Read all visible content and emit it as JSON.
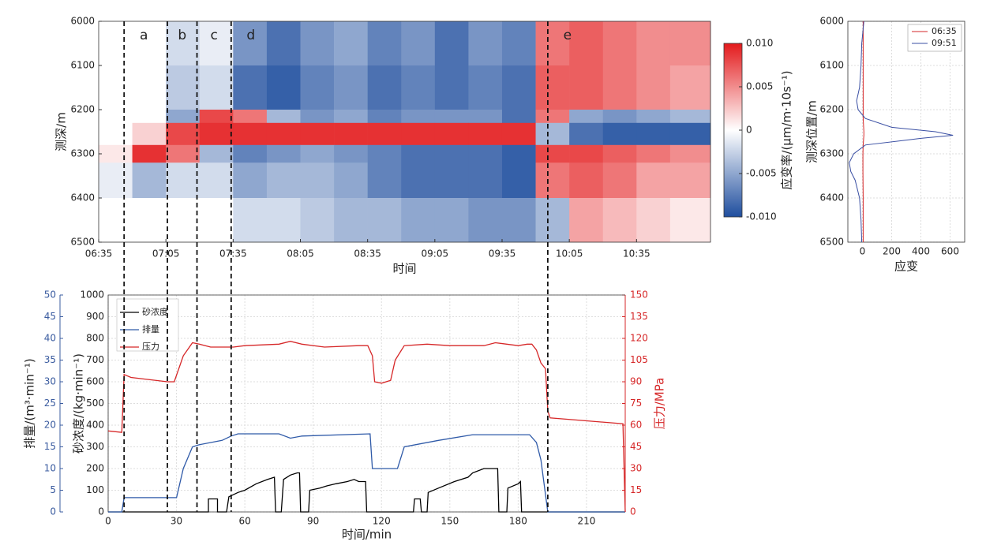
{
  "chart_data": [
    {
      "type": "heatmap",
      "xlabel": "时间",
      "ylabel": "测深/m",
      "zlabel": "应变率/(μm/m·10s⁻¹)",
      "xlim": [
        "06:35",
        "11:08"
      ],
      "xticks": [
        "06:35",
        "07:05",
        "07:35",
        "08:05",
        "08:35",
        "09:05",
        "09:35",
        "10:05",
        "10:35"
      ],
      "ylim": [
        6000,
        6500
      ],
      "yticks": [
        6000,
        6100,
        6200,
        6300,
        6400,
        6500
      ],
      "y_reversed": true,
      "zlim": [
        -0.01,
        0.01
      ],
      "zticks": [
        {
          "value": 0.01,
          "label": "0.010"
        },
        0.005,
        0,
        -0.005,
        {
          "value": -0.01,
          "label": "-0.010"
        }
      ],
      "colors": [
        "#1f4e9e",
        "#ffffff",
        "#e31a1c"
      ],
      "x_edges": [
        "06:35",
        "06:50",
        "07:05",
        "07:20",
        "07:35",
        "07:50",
        "08:05",
        "08:20",
        "08:35",
        "08:50",
        "09:05",
        "09:20",
        "09:35",
        "09:50",
        "10:05",
        "10:20",
        "10:35",
        "10:50",
        "11:08"
      ],
      "y_edges": [
        6000,
        6100,
        6200,
        6230,
        6280,
        6320,
        6400,
        6500
      ],
      "z": [
        [
          0,
          0,
          -0.002,
          -0.001,
          -0.006,
          -0.008,
          -0.006,
          -0.005,
          -0.007,
          -0.006,
          -0.008,
          -0.006,
          -0.007,
          0.006,
          0.007,
          0.006,
          0.005,
          0.005
        ],
        [
          0,
          0,
          -0.003,
          -0.002,
          -0.008,
          -0.009,
          -0.007,
          -0.006,
          -0.008,
          -0.007,
          -0.008,
          -0.007,
          -0.008,
          0.007,
          0.007,
          0.006,
          0.005,
          0.004
        ],
        [
          0,
          0,
          -0.005,
          0.008,
          0.006,
          -0.004,
          -0.006,
          -0.005,
          -0.007,
          -0.006,
          -0.006,
          -0.006,
          -0.008,
          0.006,
          -0.005,
          -0.006,
          -0.005,
          -0.004
        ],
        [
          0,
          0.002,
          0.008,
          0.009,
          0.009,
          0.009,
          0.009,
          0.009,
          0.009,
          0.009,
          0.009,
          0.009,
          0.009,
          -0.004,
          -0.008,
          -0.009,
          -0.009,
          -0.009
        ],
        [
          0.001,
          0.009,
          0.006,
          -0.004,
          -0.007,
          -0.006,
          -0.005,
          -0.006,
          -0.007,
          -0.008,
          -0.008,
          -0.008,
          -0.009,
          0.008,
          0.008,
          0.007,
          0.006,
          0.005
        ],
        [
          -0.001,
          -0.004,
          -0.002,
          -0.002,
          -0.005,
          -0.004,
          -0.004,
          -0.005,
          -0.007,
          -0.008,
          -0.008,
          -0.008,
          -0.009,
          0.006,
          0.007,
          0.006,
          0.004,
          0.004
        ],
        [
          0,
          0,
          0,
          0,
          -0.002,
          -0.002,
          -0.003,
          -0.004,
          -0.004,
          -0.005,
          -0.005,
          -0.006,
          -0.006,
          -0.004,
          0.004,
          0.003,
          0.002,
          0.001
        ]
      ]
    },
    {
      "type": "profile",
      "xlabel": "应变",
      "ylabel": "测深位置/m",
      "xlim": [
        -100,
        700
      ],
      "xticks": [
        0,
        200,
        400,
        600
      ],
      "ylim": [
        6000,
        6500
      ],
      "yticks": [
        6000,
        6100,
        6200,
        6300,
        6400,
        6500
      ],
      "y_reversed": true,
      "grid": true,
      "legend": "upper right",
      "y": [
        6000,
        6050,
        6100,
        6150,
        6180,
        6200,
        6220,
        6240,
        6250,
        6258,
        6265,
        6280,
        6300,
        6320,
        6340,
        6360,
        6400,
        6450,
        6500
      ],
      "series": [
        {
          "name": "06:35",
          "color": "#d62728",
          "values": [
            5,
            5,
            5,
            5,
            5,
            5,
            5,
            8,
            10,
            10,
            8,
            5,
            3,
            3,
            3,
            4,
            5,
            5,
            5
          ]
        },
        {
          "name": "09:51",
          "color": "#3a4fa3",
          "values": [
            10,
            -5,
            -10,
            -20,
            -40,
            -30,
            20,
            200,
            500,
            620,
            400,
            20,
            -60,
            -90,
            -80,
            -50,
            -20,
            -10,
            -5
          ]
        }
      ]
    },
    {
      "type": "line",
      "xlabel": "时间/min",
      "ylabel": "砂浓度/(kg·min⁻¹)",
      "y2label": "压力/MPa",
      "y3label": "排量/(m³·min⁻¹)",
      "xlim": [
        0,
        227
      ],
      "xticks": [
        0,
        30,
        60,
        90,
        120,
        150,
        180,
        210
      ],
      "ylim": [
        0,
        1000
      ],
      "yticks": [
        0,
        100,
        200,
        300,
        400,
        500,
        600,
        700,
        800,
        900,
        1000
      ],
      "y2lim": [
        0,
        150
      ],
      "y2ticks": [
        0,
        15,
        30,
        45,
        60,
        75,
        90,
        105,
        120,
        135,
        150
      ],
      "y2color": "#d62728",
      "y3lim": [
        0,
        50
      ],
      "y3ticks": [
        0,
        5,
        10,
        15,
        20,
        25,
        30,
        35,
        40,
        45,
        50
      ],
      "y3color": "#3b5ca0",
      "grid": true,
      "legend": "upper left",
      "phase_lines": [
        7,
        26,
        39,
        54,
        193
      ],
      "phase_labels": [
        "a",
        "b",
        "c",
        "d",
        "e"
      ],
      "series": [
        {
          "name": "砂浓度",
          "color": "#000000",
          "axis": "y",
          "x": [
            0,
            44,
            44,
            48,
            48,
            52,
            53,
            57,
            60,
            65,
            70,
            73,
            73.5,
            76,
            77,
            80,
            83,
            84,
            84.5,
            88,
            88.5,
            93,
            96,
            100,
            105,
            108,
            110,
            113,
            113.5,
            134,
            134.5,
            137,
            137.5,
            140,
            140.5,
            145,
            152,
            158,
            160,
            165,
            171,
            171.5,
            175,
            175.5,
            180,
            181,
            181.5,
            227
          ],
          "values": [
            0,
            0,
            60,
            60,
            0,
            0,
            70,
            90,
            100,
            130,
            150,
            160,
            0,
            0,
            150,
            170,
            180,
            180,
            0,
            0,
            100,
            110,
            120,
            130,
            140,
            150,
            140,
            140,
            0,
            0,
            60,
            60,
            0,
            0,
            90,
            110,
            140,
            160,
            180,
            200,
            200,
            0,
            0,
            110,
            130,
            140,
            0,
            0
          ]
        },
        {
          "name": "排量",
          "color": "#2f5aa8",
          "axis": "y3",
          "x": [
            0,
            6,
            7,
            30,
            33,
            37,
            40,
            50,
            54,
            57,
            75,
            80,
            85,
            115,
            116,
            127,
            130,
            145,
            160,
            185,
            188,
            190,
            193,
            227
          ],
          "values": [
            0,
            0,
            3.3,
            3.3,
            10,
            15,
            15.5,
            16.5,
            17.5,
            18,
            18,
            17,
            17.5,
            18,
            10,
            10,
            15,
            16.5,
            17.8,
            17.8,
            16,
            12,
            0,
            0
          ]
        },
        {
          "name": "压力",
          "color": "#d62728",
          "axis": "y2",
          "x": [
            0,
            6,
            7,
            10,
            26,
            29,
            33,
            37,
            40,
            45,
            55,
            60,
            75,
            80,
            85,
            95,
            110,
            114,
            116,
            117,
            120,
            124,
            126,
            130,
            140,
            150,
            165,
            170,
            180,
            184,
            186,
            188,
            190,
            192,
            193,
            194,
            226,
            227
          ],
          "values": [
            56,
            55,
            95,
            93,
            90,
            90,
            108,
            117,
            116,
            114,
            114,
            115,
            116,
            118,
            116,
            114,
            115,
            115,
            108,
            90,
            89,
            91,
            105,
            115,
            116,
            115,
            115,
            117,
            115,
            116,
            116,
            112,
            103,
            99,
            70,
            65,
            61,
            0
          ]
        }
      ]
    }
  ]
}
